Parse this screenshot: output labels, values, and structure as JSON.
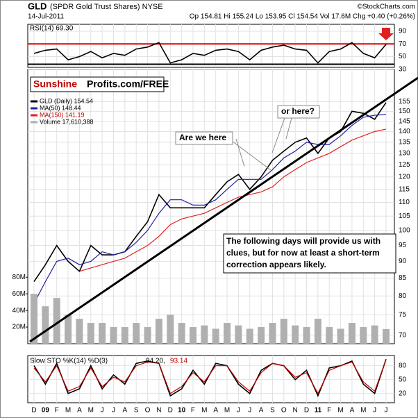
{
  "chart_data": [
    {
      "type": "line",
      "title": "GLD",
      "subtitle": "(SPDR Gold Trust Shares) NYSE",
      "credit": "©StockCharts.com",
      "date": "14-Jul-2011",
      "quote": "Op 154.81  Hi 155.24  Lo 153.95  Cl 154.54  Vol 17.6M  Chg +0.40 (+0.26%)",
      "logo_red": "Sunshine",
      "logo_black": "Profits.com/FREE",
      "annotations": [
        "Are we here",
        "or here?",
        "The following days will provide us with clues, but for now at least a short-term correction appears likely."
      ],
      "categories": [
        "D",
        "09",
        "F",
        "M",
        "A",
        "M",
        "J",
        "J",
        "A",
        "S",
        "O",
        "N",
        "D",
        "10",
        "F",
        "M",
        "A",
        "M",
        "J",
        "J",
        "A",
        "S",
        "O",
        "N",
        "D",
        "11",
        "F",
        "M",
        "A",
        "M",
        "J",
        "J"
      ],
      "log_scale": true,
      "ylim": [
        68,
        173
      ],
      "yticks": [
        70,
        75,
        80,
        85,
        90,
        95,
        100,
        105,
        110,
        115,
        120,
        125,
        130,
        135,
        140,
        145,
        150,
        155
      ],
      "y2lim": [
        0,
        330000000
      ],
      "y2ticks": [
        {
          "value": 20000000,
          "label": "20M"
        },
        {
          "value": 40000000,
          "label": "40M"
        },
        {
          "value": 60000000,
          "label": "60M"
        },
        {
          "value": 80000000,
          "label": "80M"
        }
      ],
      "grid": true,
      "series": [
        {
          "name": "GLD (Daily) 154.54",
          "color": "#000000",
          "values": [
            84,
            89,
            95,
            90,
            87,
            95,
            92,
            92,
            93,
            98,
            103,
            113,
            108,
            108,
            108,
            108,
            113,
            118,
            121,
            115,
            120,
            127,
            131,
            135,
            137,
            130,
            137,
            140,
            150,
            149,
            146,
            154.54
          ]
        },
        {
          "name": "MA(50) 148.44",
          "color": "#1f1fa0",
          "values": [
            78,
            84,
            90,
            91,
            89,
            90,
            93,
            92,
            93,
            96,
            100,
            106,
            111,
            111,
            109,
            109,
            111,
            115,
            119,
            119,
            119,
            123,
            128,
            131,
            135,
            134,
            134,
            138,
            143,
            147,
            148,
            148.44
          ]
        },
        {
          "name": "MA(150) 141.19",
          "color": "#e02020",
          "values": [
            null,
            null,
            null,
            null,
            87,
            88,
            89,
            90,
            91,
            93,
            95,
            98,
            102,
            104,
            105,
            106,
            108,
            110,
            112,
            113,
            114,
            116,
            120,
            123,
            126,
            128,
            130,
            133,
            136,
            138,
            140,
            141.19
          ]
        },
        {
          "name": "Volume 17,610,388",
          "color": "#b0b0b0",
          "axis": "y2",
          "values": [
            60000000,
            45000000,
            55000000,
            35000000,
            30000000,
            25000000,
            25000000,
            20000000,
            20000000,
            25000000,
            20000000,
            30000000,
            35000000,
            25000000,
            20000000,
            22000000,
            18000000,
            25000000,
            22000000,
            18000000,
            20000000,
            25000000,
            30000000,
            22000000,
            20000000,
            30000000,
            20000000,
            18000000,
            25000000,
            20000000,
            22000000,
            17610388
          ]
        }
      ]
    },
    {
      "type": "line",
      "title": "RSI(14) 69.30",
      "ylim": [
        33,
        101
      ],
      "yticks": [
        30,
        50,
        70,
        90
      ],
      "series": [
        {
          "color": "#000000",
          "values": [
            55,
            60,
            62,
            45,
            50,
            58,
            48,
            55,
            52,
            62,
            65,
            72,
            40,
            45,
            55,
            52,
            60,
            62,
            58,
            45,
            60,
            65,
            68,
            62,
            60,
            40,
            58,
            62,
            72,
            55,
            48,
            69.3
          ]
        }
      ]
    },
    {
      "type": "line",
      "title": "Slow STO %K(14) %D(3)",
      "readout_k": "94.20,",
      "readout_d": "93.14",
      "ylim": [
        0,
        102
      ],
      "yticks": [
        20,
        50,
        80
      ],
      "series": [
        {
          "color": "#000000",
          "values": [
            80,
            40,
            85,
            20,
            30,
            80,
            30,
            60,
            40,
            85,
            90,
            85,
            15,
            30,
            70,
            40,
            85,
            80,
            40,
            20,
            70,
            85,
            80,
            50,
            70,
            15,
            75,
            80,
            90,
            40,
            20,
            94.2
          ]
        },
        {
          "color": "#c00000",
          "values": [
            75,
            45,
            80,
            25,
            35,
            75,
            35,
            55,
            45,
            80,
            88,
            85,
            20,
            35,
            65,
            45,
            80,
            80,
            45,
            25,
            65,
            85,
            80,
            55,
            65,
            20,
            70,
            80,
            88,
            45,
            25,
            93.14
          ]
        }
      ]
    }
  ]
}
